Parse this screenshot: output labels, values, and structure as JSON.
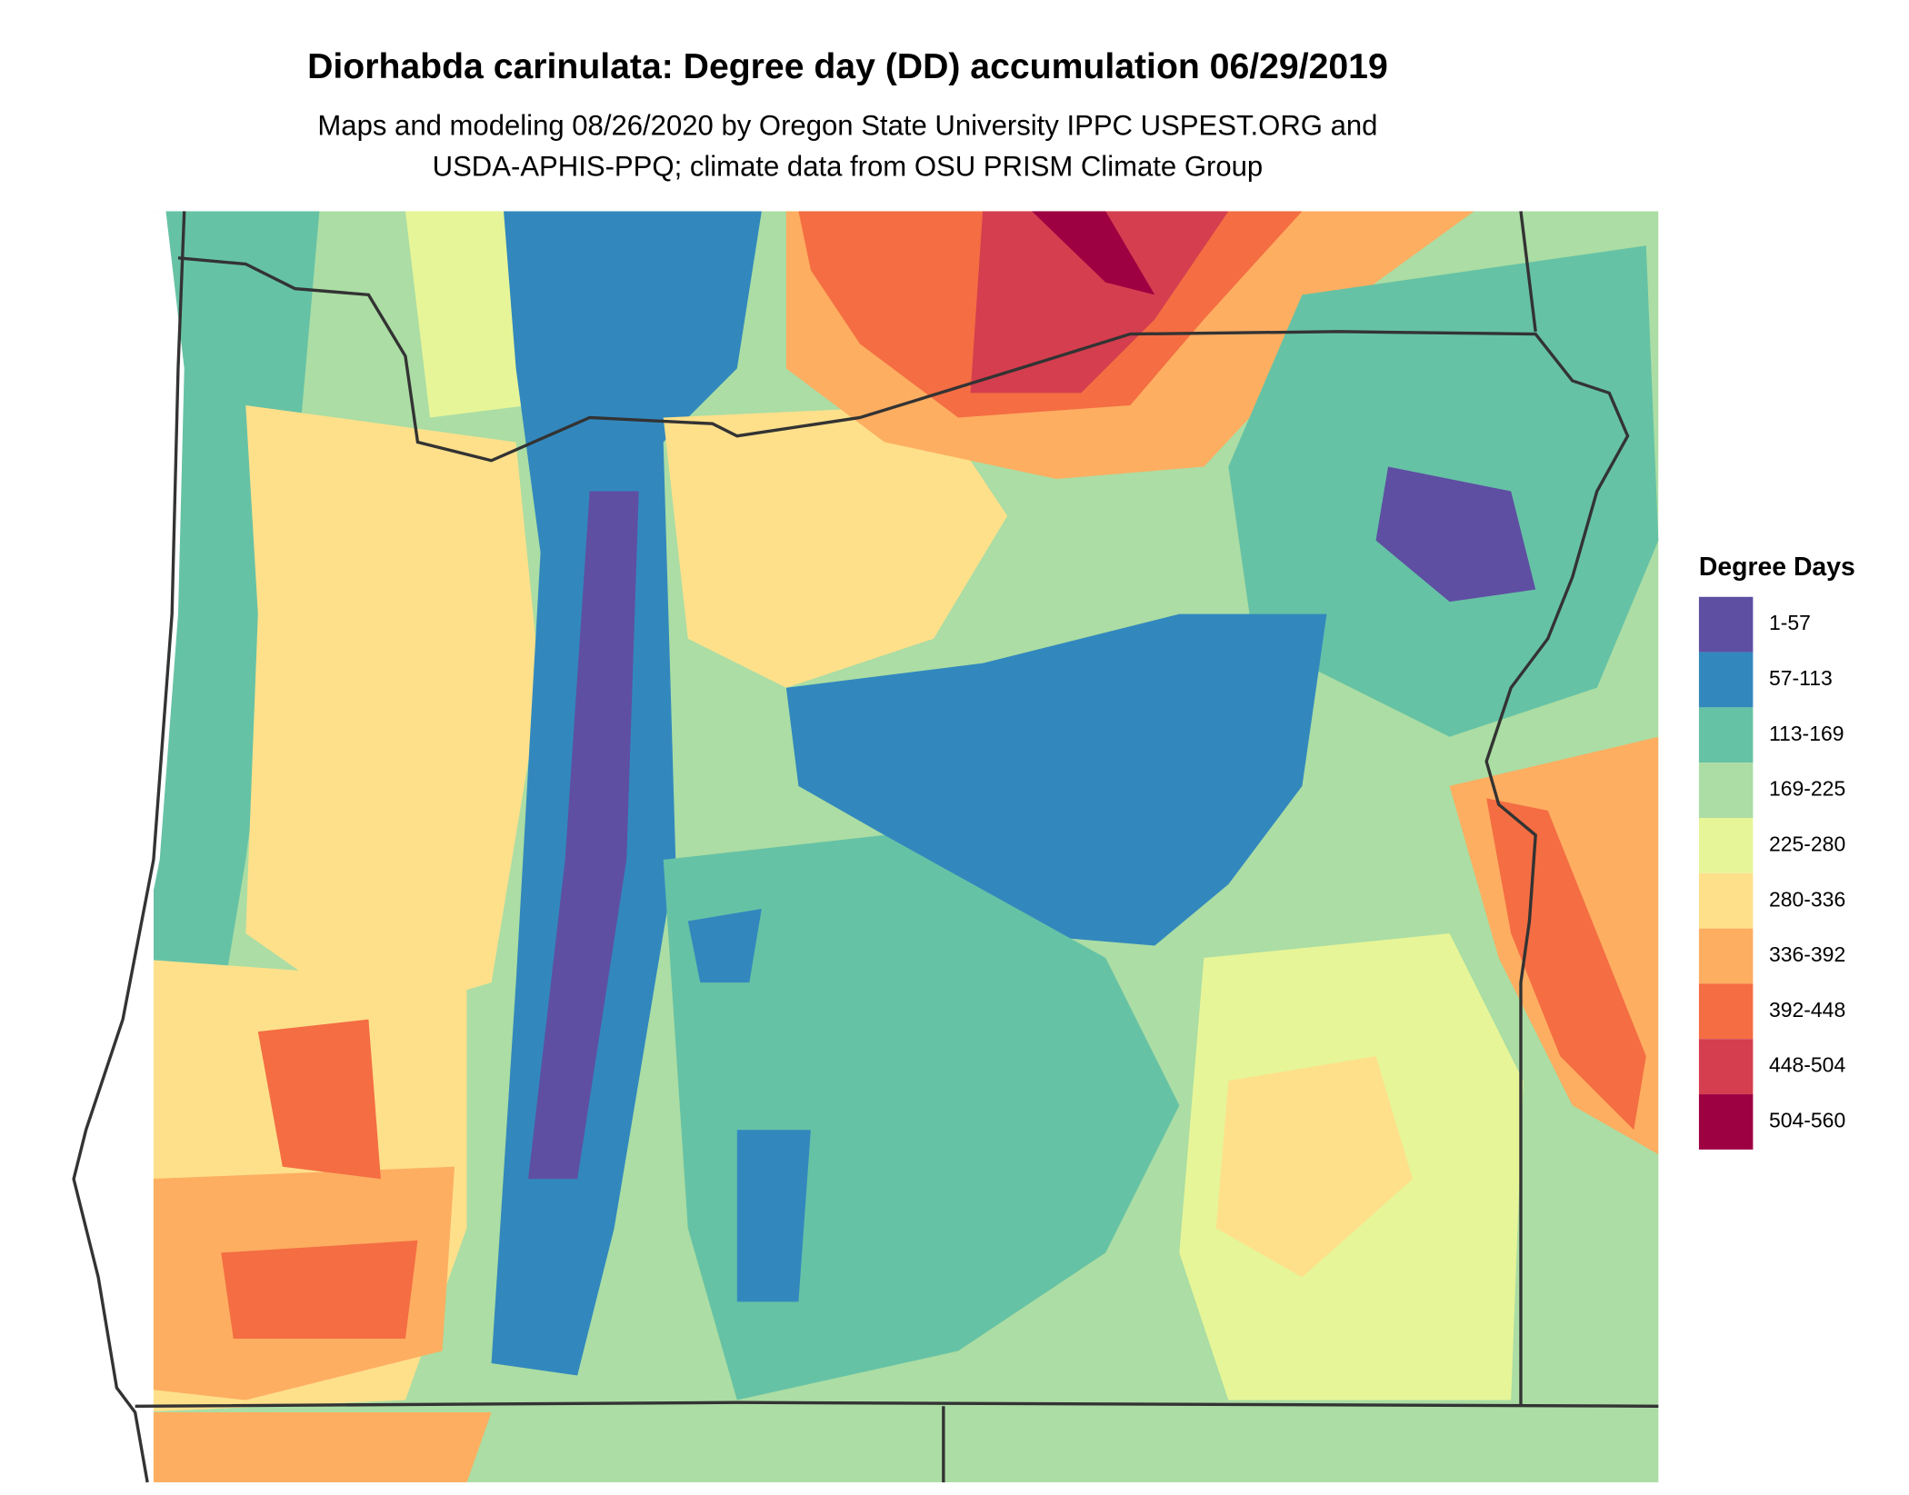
{
  "title": "Diorhabda carinulata: Degree day (DD) accumulation 06/29/2019",
  "subtitle": [
    "Maps and modeling 08/26/2020 by Oregon State University IPPC USPEST.ORG and",
    "USDA-APHIS-PPQ; climate data from OSU PRISM Climate Group"
  ],
  "legend": {
    "title": "Degree Days",
    "items": [
      {
        "label": "1-57",
        "color": "#5e4fa2"
      },
      {
        "label": "57-113",
        "color": "#3288bd"
      },
      {
        "label": "113-169",
        "color": "#66c2a5"
      },
      {
        "label": "169-225",
        "color": "#abdda4"
      },
      {
        "label": "225-280",
        "color": "#e6f598"
      },
      {
        "label": "280-336",
        "color": "#fee08b"
      },
      {
        "label": "336-392",
        "color": "#fdae61"
      },
      {
        "label": "392-448",
        "color": "#f46d43"
      },
      {
        "label": "448-504",
        "color": "#d53e4f"
      },
      {
        "label": "504-560",
        "color": "#9e0142"
      }
    ]
  }
}
